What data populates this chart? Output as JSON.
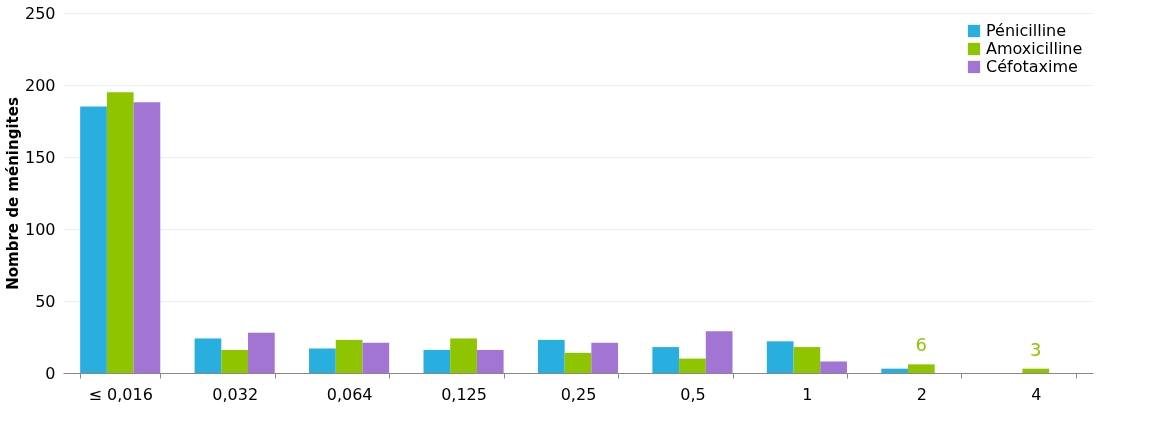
{
  "chart_data": {
    "type": "bar",
    "ylabel": "Nombre de méningites",
    "categories": [
      "≤ 0,016",
      "0,032",
      "0,064",
      "0,125",
      "0,25",
      "0,5",
      "1",
      "2",
      "4"
    ],
    "series": [
      {
        "name": "Pénicilline",
        "color": "#29aee0",
        "values": [
          185,
          24,
          17,
          16,
          23,
          18,
          22,
          3,
          0
        ]
      },
      {
        "name": "Amoxicilline",
        "color": "#8fc400",
        "values": [
          195,
          16,
          23,
          24,
          14,
          10,
          18,
          6,
          3
        ],
        "value_labels": [
          null,
          null,
          null,
          null,
          null,
          null,
          null,
          "6",
          "3"
        ]
      },
      {
        "name": "Céfotaxime",
        "color": "#a274d4",
        "values": [
          188,
          28,
          21,
          16,
          21,
          29,
          8,
          0,
          0
        ]
      }
    ],
    "ylim": [
      0,
      250
    ],
    "yticks": [
      0,
      50,
      100,
      150,
      200,
      250
    ],
    "grid": "y",
    "legend": "top right"
  }
}
